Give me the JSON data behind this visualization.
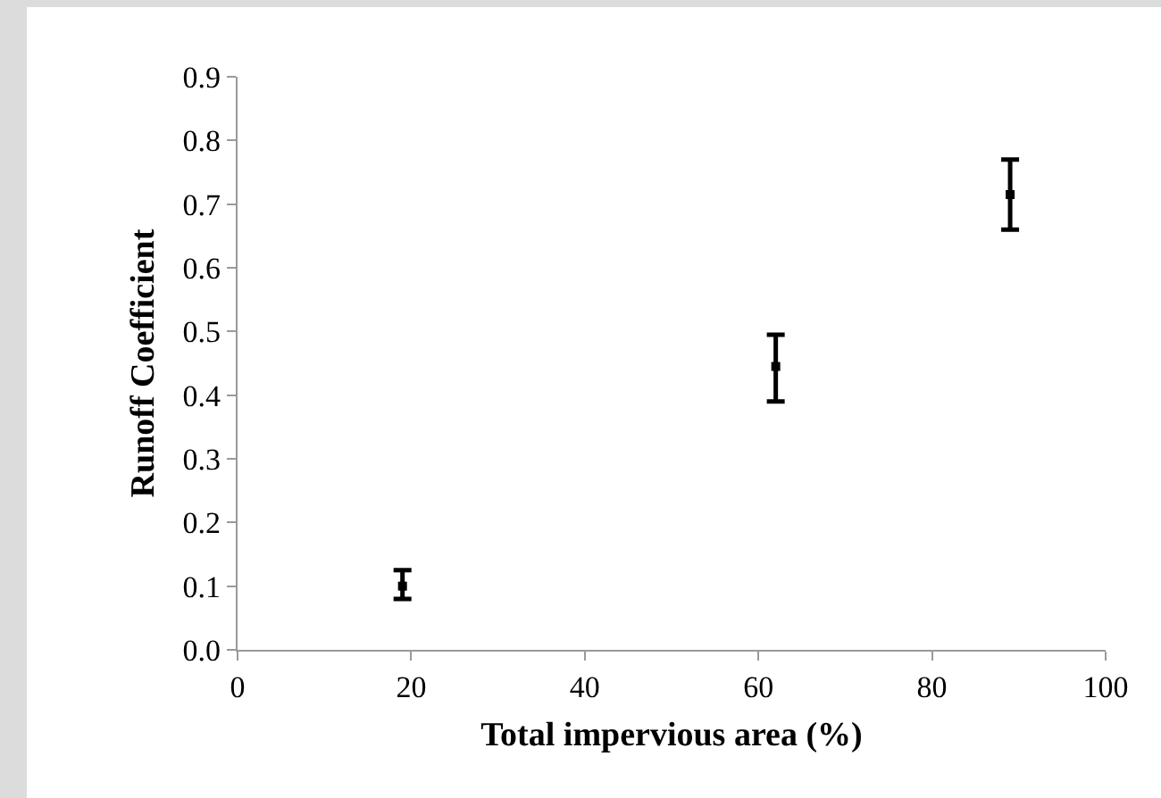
{
  "chart_data": {
    "type": "scatter",
    "xlabel": "Total impervious area (%)",
    "ylabel": "Runoff Coefficient",
    "x": [
      19,
      62,
      89
    ],
    "values": [
      0.1,
      0.445,
      0.715
    ],
    "errors": [
      [
        0.08,
        0.125
      ],
      [
        0.39,
        0.495
      ],
      [
        0.66,
        0.77
      ]
    ],
    "color": "#000000",
    "xlim": [
      0,
      100
    ],
    "xticks": [
      0,
      20,
      40,
      60,
      80,
      100
    ],
    "ylim": [
      0,
      0.9
    ],
    "yticks": [
      {
        "value": 0,
        "label": "0.0"
      },
      {
        "value": 0.1,
        "label": "0.1"
      },
      {
        "value": 0.2,
        "label": "0.2"
      },
      {
        "value": 0.3,
        "label": "0.3"
      },
      {
        "value": 0.4,
        "label": "0.4"
      },
      {
        "value": 0.5,
        "label": "0.5"
      },
      {
        "value": 0.6,
        "label": "0.6"
      },
      {
        "value": 0.7,
        "label": "0.7"
      },
      {
        "value": 0.8,
        "label": "0.8"
      },
      {
        "value": 0.9,
        "label": "0.9"
      }
    ],
    "marker": "square"
  }
}
